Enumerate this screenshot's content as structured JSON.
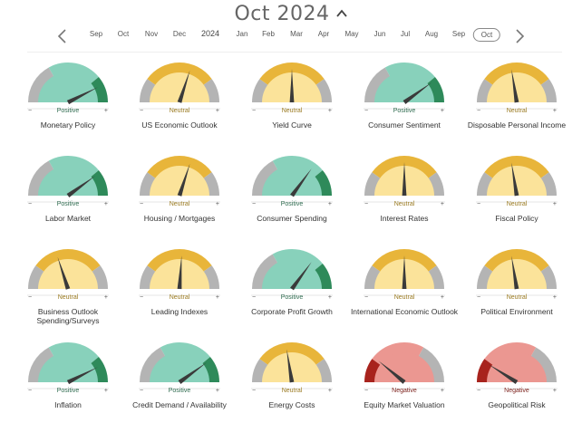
{
  "header": {
    "title": "Oct 2024"
  },
  "timeline": {
    "items": [
      {
        "label": "Sep",
        "kind": "month"
      },
      {
        "label": "Oct",
        "kind": "month"
      },
      {
        "label": "Nov",
        "kind": "month"
      },
      {
        "label": "Dec",
        "kind": "month"
      },
      {
        "label": "2024",
        "kind": "year"
      },
      {
        "label": "Jan",
        "kind": "month"
      },
      {
        "label": "Feb",
        "kind": "month"
      },
      {
        "label": "Mar",
        "kind": "month"
      },
      {
        "label": "Apr",
        "kind": "month"
      },
      {
        "label": "May",
        "kind": "month"
      },
      {
        "label": "Jun",
        "kind": "month"
      },
      {
        "label": "Jul",
        "kind": "month"
      },
      {
        "label": "Aug",
        "kind": "month"
      },
      {
        "label": "Sep",
        "kind": "month"
      },
      {
        "label": "Oct",
        "kind": "month",
        "selected": true
      }
    ]
  },
  "scale": {
    "minus": "−",
    "plus": "+"
  },
  "colors": {
    "positive_fill": "#88d1bb",
    "positive_accent": "#2e8a5a",
    "neutral_fill": "#fbe39a",
    "neutral_accent": "#e8b53a",
    "negative_fill": "#eb9791",
    "negative_accent": "#a8231d",
    "track": "#b4b4b4",
    "needle": "#3a3a3a"
  },
  "indicators": [
    {
      "name": "Monetary Policy",
      "status": "Positive",
      "reading": 0.85
    },
    {
      "name": "US Economic Outlook",
      "status": "Neutral",
      "reading": 0.6
    },
    {
      "name": "Yield Curve",
      "status": "Neutral",
      "reading": 0.5
    },
    {
      "name": "Consumer Sentiment",
      "status": "Positive",
      "reading": 0.8
    },
    {
      "name": "Disposable Personal Income",
      "status": "Neutral",
      "reading": 0.45
    },
    {
      "name": "Labor Market",
      "status": "Positive",
      "reading": 0.8
    },
    {
      "name": "Housing / Mortgages",
      "status": "Neutral",
      "reading": 0.6
    },
    {
      "name": "Consumer Spending",
      "status": "Positive",
      "reading": 0.7
    },
    {
      "name": "Interest Rates",
      "status": "Neutral",
      "reading": 0.5
    },
    {
      "name": "Fiscal Policy",
      "status": "Neutral",
      "reading": 0.45
    },
    {
      "name": "Business Outlook Spending/Surveys",
      "status": "Neutral",
      "reading": 0.4
    },
    {
      "name": "Leading Indexes",
      "status": "Neutral",
      "reading": 0.52
    },
    {
      "name": "Corporate Profit Growth",
      "status": "Positive",
      "reading": 0.7
    },
    {
      "name": "International Economic Outlook",
      "status": "Neutral",
      "reading": 0.5
    },
    {
      "name": "Political Environment",
      "status": "Neutral",
      "reading": 0.45
    },
    {
      "name": "Inflation",
      "status": "Positive",
      "reading": 0.85
    },
    {
      "name": "Credit Demand / Availability",
      "status": "Positive",
      "reading": 0.8
    },
    {
      "name": "Energy Costs",
      "status": "Neutral",
      "reading": 0.45
    },
    {
      "name": "Equity Market Valuation",
      "status": "Negative",
      "reading": 0.22
    },
    {
      "name": "Geopolitical Risk",
      "status": "Negative",
      "reading": 0.18
    }
  ]
}
